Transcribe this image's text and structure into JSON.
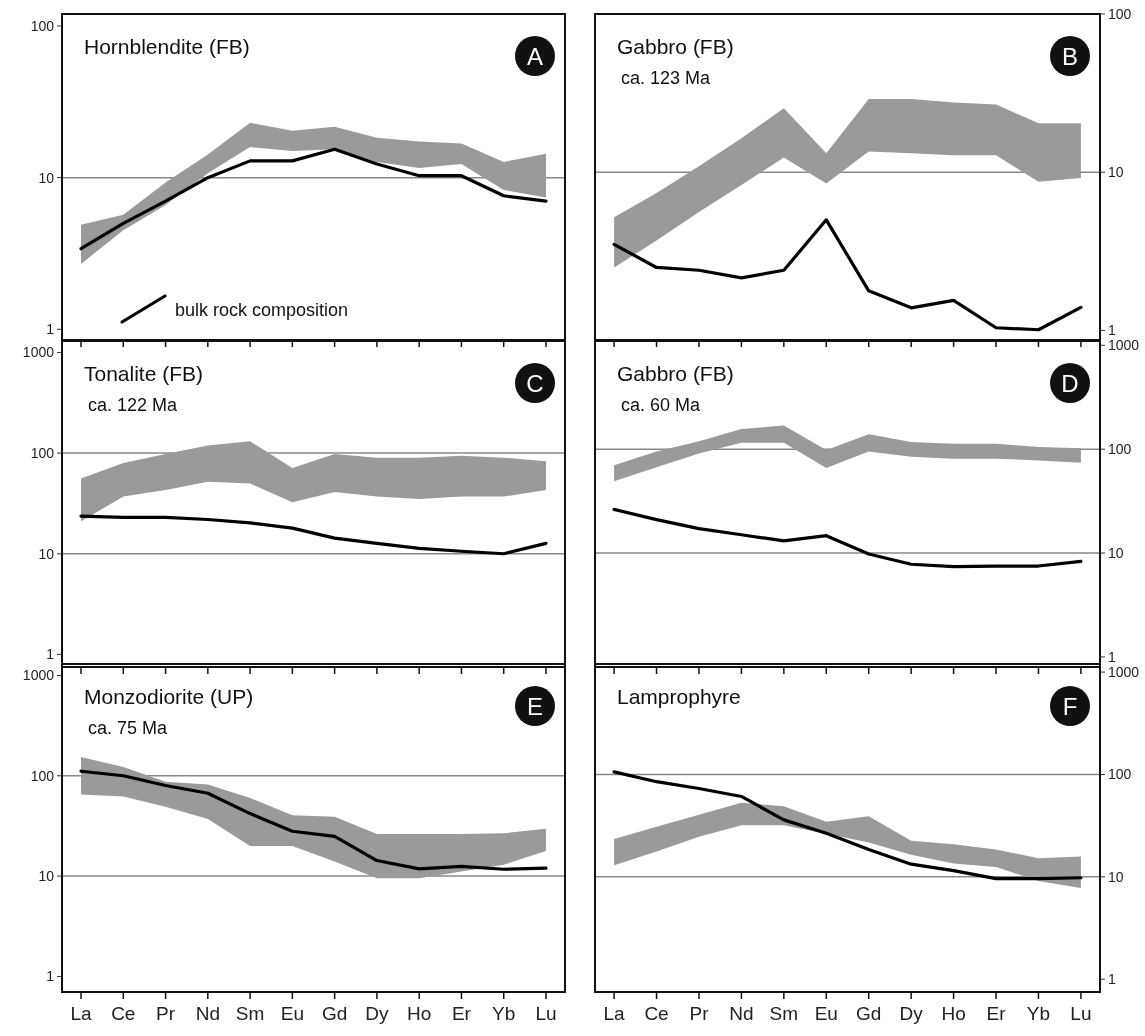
{
  "chart_data": [
    {
      "type": "line",
      "title": "Hornblendite (FB)",
      "annotations": [
        "A"
      ],
      "categories": [
        null,
        null,
        null,
        null,
        null,
        null,
        null,
        null,
        null,
        null,
        null,
        null
      ],
      "log": "y",
      "ylim": [
        0.85,
        120
      ],
      "yticks": [
        1,
        10,
        100
      ],
      "tick_labels": "y",
      "legend": "bottom left",
      "ref_lines": [
        {
          "axis": "y",
          "value": 10,
          "color": "#888888"
        }
      ],
      "series": [
        {
          "type": "area",
          "color": "#9a9a9a",
          "values": [
            null,
            null,
            null,
            null,
            null,
            null,
            null,
            null,
            null,
            null,
            null,
            null
          ],
          "lower": [
            2.7,
            4.5,
            6.6,
            10.7,
            15.9,
            15,
            15.4,
            12.7,
            11.6,
            12.3,
            8.3,
            7.4
          ],
          "upper": [
            4.9,
            5.7,
            9.3,
            14.2,
            23,
            20.4,
            21.7,
            18.3,
            17.3,
            16.8,
            12.7,
            14.4
          ]
        },
        {
          "name": "bulk rock composition",
          "color": "#000000",
          "values": [
            3.4,
            5.0,
            7.0,
            10,
            12.9,
            12.9,
            15.4,
            12.3,
            10.3,
            10.3,
            7.6,
            7.0
          ]
        }
      ]
    },
    {
      "type": "line",
      "title": "Gabbro (FB)",
      "subtitle": "ca. 123 Ma",
      "annotations": [
        "B"
      ],
      "categories": [
        null,
        null,
        null,
        null,
        null,
        null,
        null,
        null,
        null,
        null,
        null,
        null
      ],
      "log": "y",
      "ylim": [
        0.87,
        100
      ],
      "yticks": [
        1,
        10,
        100
      ],
      "tick_labels": "y",
      "ref_lines": [
        {
          "axis": "y",
          "value": 10,
          "color": "#888888"
        }
      ],
      "series": [
        {
          "type": "area",
          "color": "#9a9a9a",
          "values": [
            null,
            null,
            null,
            null,
            null,
            null,
            null,
            null,
            null,
            null,
            null,
            null
          ],
          "lower": [
            2.5,
            3.7,
            5.6,
            8.3,
            12.4,
            8.5,
            13.5,
            13.2,
            12.8,
            12.8,
            8.7,
            9.2
          ],
          "upper": [
            5.2,
            7.4,
            10.9,
            16.4,
            25.4,
            13.2,
            29,
            29,
            27.6,
            26.8,
            20.4,
            20.4
          ]
        },
        {
          "color": "#000000",
          "values": [
            3.5,
            2.5,
            2.4,
            2.15,
            2.4,
            5.0,
            1.78,
            1.39,
            1.55,
            1.04,
            1.01,
            1.4
          ]
        }
      ]
    },
    {
      "type": "line",
      "title": "Tonalite (FB)",
      "subtitle": "ca. 122 Ma",
      "annotations": [
        "C"
      ],
      "categories": [
        null,
        null,
        null,
        null,
        null,
        null,
        null,
        null,
        null,
        null,
        null,
        null
      ],
      "log": "y",
      "ylim": [
        0.75,
        1300
      ],
      "yticks": [
        1,
        10,
        100,
        1000
      ],
      "tick_labels": "y",
      "ref_lines": [
        {
          "axis": "y",
          "value": 10,
          "color": "#888888"
        },
        {
          "axis": "y",
          "value": 100,
          "color": "#888888"
        }
      ],
      "series": [
        {
          "type": "area",
          "color": "#9a9a9a",
          "values": [
            null,
            null,
            null,
            null,
            null,
            null,
            null,
            null,
            null,
            null,
            null,
            null
          ],
          "lower": [
            21,
            37,
            43,
            52,
            50,
            32.5,
            41,
            37,
            35,
            37,
            37,
            43
          ],
          "upper": [
            56,
            80,
            98,
            119,
            131,
            71,
            98,
            90,
            90,
            94,
            90,
            83
          ]
        },
        {
          "color": "#000000",
          "values": [
            23.7,
            23,
            23,
            21.9,
            20.3,
            18,
            14.3,
            12.7,
            11.3,
            10.6,
            10,
            12.7
          ]
        }
      ]
    },
    {
      "type": "line",
      "title": "Gabbro (FB)",
      "subtitle": "ca. 60 Ma",
      "annotations": [
        "D"
      ],
      "categories": [
        null,
        null,
        null,
        null,
        null,
        null,
        null,
        null,
        null,
        null,
        null,
        null
      ],
      "log": "y",
      "ylim": [
        0.8,
        1100
      ],
      "yticks": [
        1,
        10,
        100,
        1000
      ],
      "tick_labels": "y",
      "ref_lines": [
        {
          "axis": "y",
          "value": 10,
          "color": "#888888"
        },
        {
          "axis": "y",
          "value": 100,
          "color": "#888888"
        }
      ],
      "series": [
        {
          "type": "area",
          "color": "#9a9a9a",
          "values": [
            null,
            null,
            null,
            null,
            null,
            null,
            null,
            null,
            null,
            null,
            null,
            null
          ],
          "lower": [
            49,
            67,
            91,
            115,
            115,
            66,
            95,
            84.5,
            81,
            81,
            78,
            74
          ],
          "upper": [
            70,
            95,
            119,
            156,
            169,
            98,
            139,
            117,
            113,
            113,
            105,
            102
          ]
        },
        {
          "color": "#000000",
          "values": [
            26.3,
            21,
            17.2,
            15,
            13.1,
            14.7,
            9.8,
            7.8,
            7.4,
            7.5,
            7.5,
            8.3
          ]
        }
      ]
    },
    {
      "type": "line",
      "title": "Monzodiorite (UP)",
      "subtitle": "ca. 75 Ma",
      "annotations": [
        "E"
      ],
      "categories": [
        "La",
        "Ce",
        "Pr",
        "Nd",
        "Sm",
        "Eu",
        "Gd",
        "Dy",
        "Ho",
        "Er",
        "Yb",
        "Lu"
      ],
      "log": "y",
      "ylim": [
        0.7,
        1300
      ],
      "yticks": [
        1,
        10,
        100,
        1000
      ],
      "ref_lines": [
        {
          "axis": "y",
          "value": 10,
          "color": "#888888"
        },
        {
          "axis": "y",
          "value": 100,
          "color": "#888888"
        }
      ],
      "series": [
        {
          "type": "area",
          "color": "#9a9a9a",
          "values": [
            null,
            null,
            null,
            null,
            null,
            null,
            null,
            null,
            null,
            null,
            null,
            null
          ],
          "lower": [
            65,
            62,
            49,
            37,
            20,
            20,
            14,
            9.5,
            9.5,
            11.1,
            13,
            17.8
          ],
          "upper": [
            154,
            122,
            87,
            82,
            60,
            40.5,
            39,
            26.3,
            26.3,
            26.3,
            26.7,
            29.6
          ]
        },
        {
          "color": "#000000",
          "values": [
            111,
            100,
            80,
            67,
            42,
            28,
            24.9,
            14.3,
            11.8,
            12.5,
            11.7,
            12
          ]
        }
      ]
    },
    {
      "type": "line",
      "title": "Lamprophyre",
      "annotations": [
        "F"
      ],
      "categories": [
        "La",
        "Ce",
        "Pr",
        "Nd",
        "Sm",
        "Eu",
        "Gd",
        "Dy",
        "Ho",
        "Er",
        "Yb",
        "Lu"
      ],
      "log": "y",
      "ylim": [
        0.75,
        1200
      ],
      "yticks": [
        1,
        10,
        100,
        1000
      ],
      "ref_lines": [
        {
          "axis": "y",
          "value": 10,
          "color": "#888888"
        },
        {
          "axis": "y",
          "value": 100,
          "color": "#888888"
        }
      ],
      "series": [
        {
          "type": "area",
          "color": "#9a9a9a",
          "values": [
            null,
            null,
            null,
            null,
            null,
            null,
            null,
            null,
            null,
            null,
            null,
            null
          ],
          "lower": [
            13,
            17.7,
            24.7,
            32,
            32,
            26.3,
            21.6,
            16.4,
            13.5,
            12.5,
            9.1,
            7.8
          ],
          "upper": [
            23.4,
            30.8,
            40.5,
            53,
            49,
            34.6,
            39,
            22.5,
            20.8,
            18.5,
            15.2,
            15.8
          ]
        },
        {
          "color": "#000000",
          "values": [
            106,
            85,
            73,
            61,
            36,
            26.7,
            18.5,
            13.3,
            11.5,
            9.6,
            9.6,
            9.8
          ]
        }
      ]
    }
  ]
}
